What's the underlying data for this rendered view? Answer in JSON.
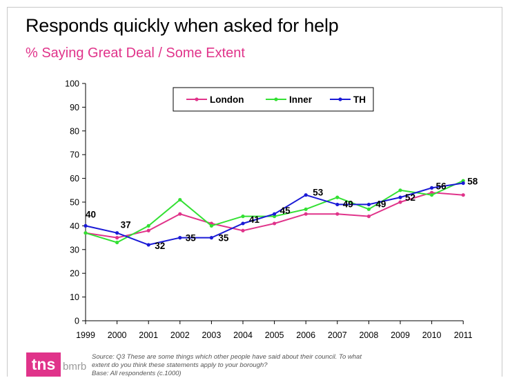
{
  "chart_data": {
    "type": "line",
    "title": "Responds quickly when asked for help",
    "subtitle": "% Saying Great Deal / Some Extent",
    "x": [
      "1999",
      "2000",
      "2001",
      "2002",
      "2003",
      "2004",
      "2005",
      "2006",
      "2007",
      "2008",
      "2009",
      "2010",
      "2011"
    ],
    "ylim": [
      0,
      100
    ],
    "yticks": [
      0,
      10,
      20,
      30,
      40,
      50,
      60,
      70,
      80,
      90,
      100
    ],
    "grid": false,
    "legend_position": "top-center",
    "series": [
      {
        "name": "London",
        "color": "#e0338a",
        "values": [
          37,
          35,
          38,
          45,
          41,
          38,
          41,
          45,
          45,
          44,
          50,
          54,
          53
        ]
      },
      {
        "name": "Inner",
        "color": "#33e033",
        "values": [
          37,
          33,
          40,
          51,
          40,
          44,
          44,
          47,
          52,
          47,
          55,
          53,
          59
        ]
      },
      {
        "name": "TH",
        "color": "#1a1ad6",
        "values": [
          40,
          37,
          32,
          35,
          35,
          41,
          45,
          53,
          49,
          49,
          52,
          56,
          58
        ],
        "labeled": true
      }
    ]
  },
  "footer": {
    "source_line1": "Source: Q3 These are some things which other people have said about their council. To what",
    "source_line2": "extent do you think these statements apply to your borough?",
    "source_line3": "Base: All respondents (c.1000)",
    "logo_main": "tns",
    "logo_sub": "bmrb"
  }
}
